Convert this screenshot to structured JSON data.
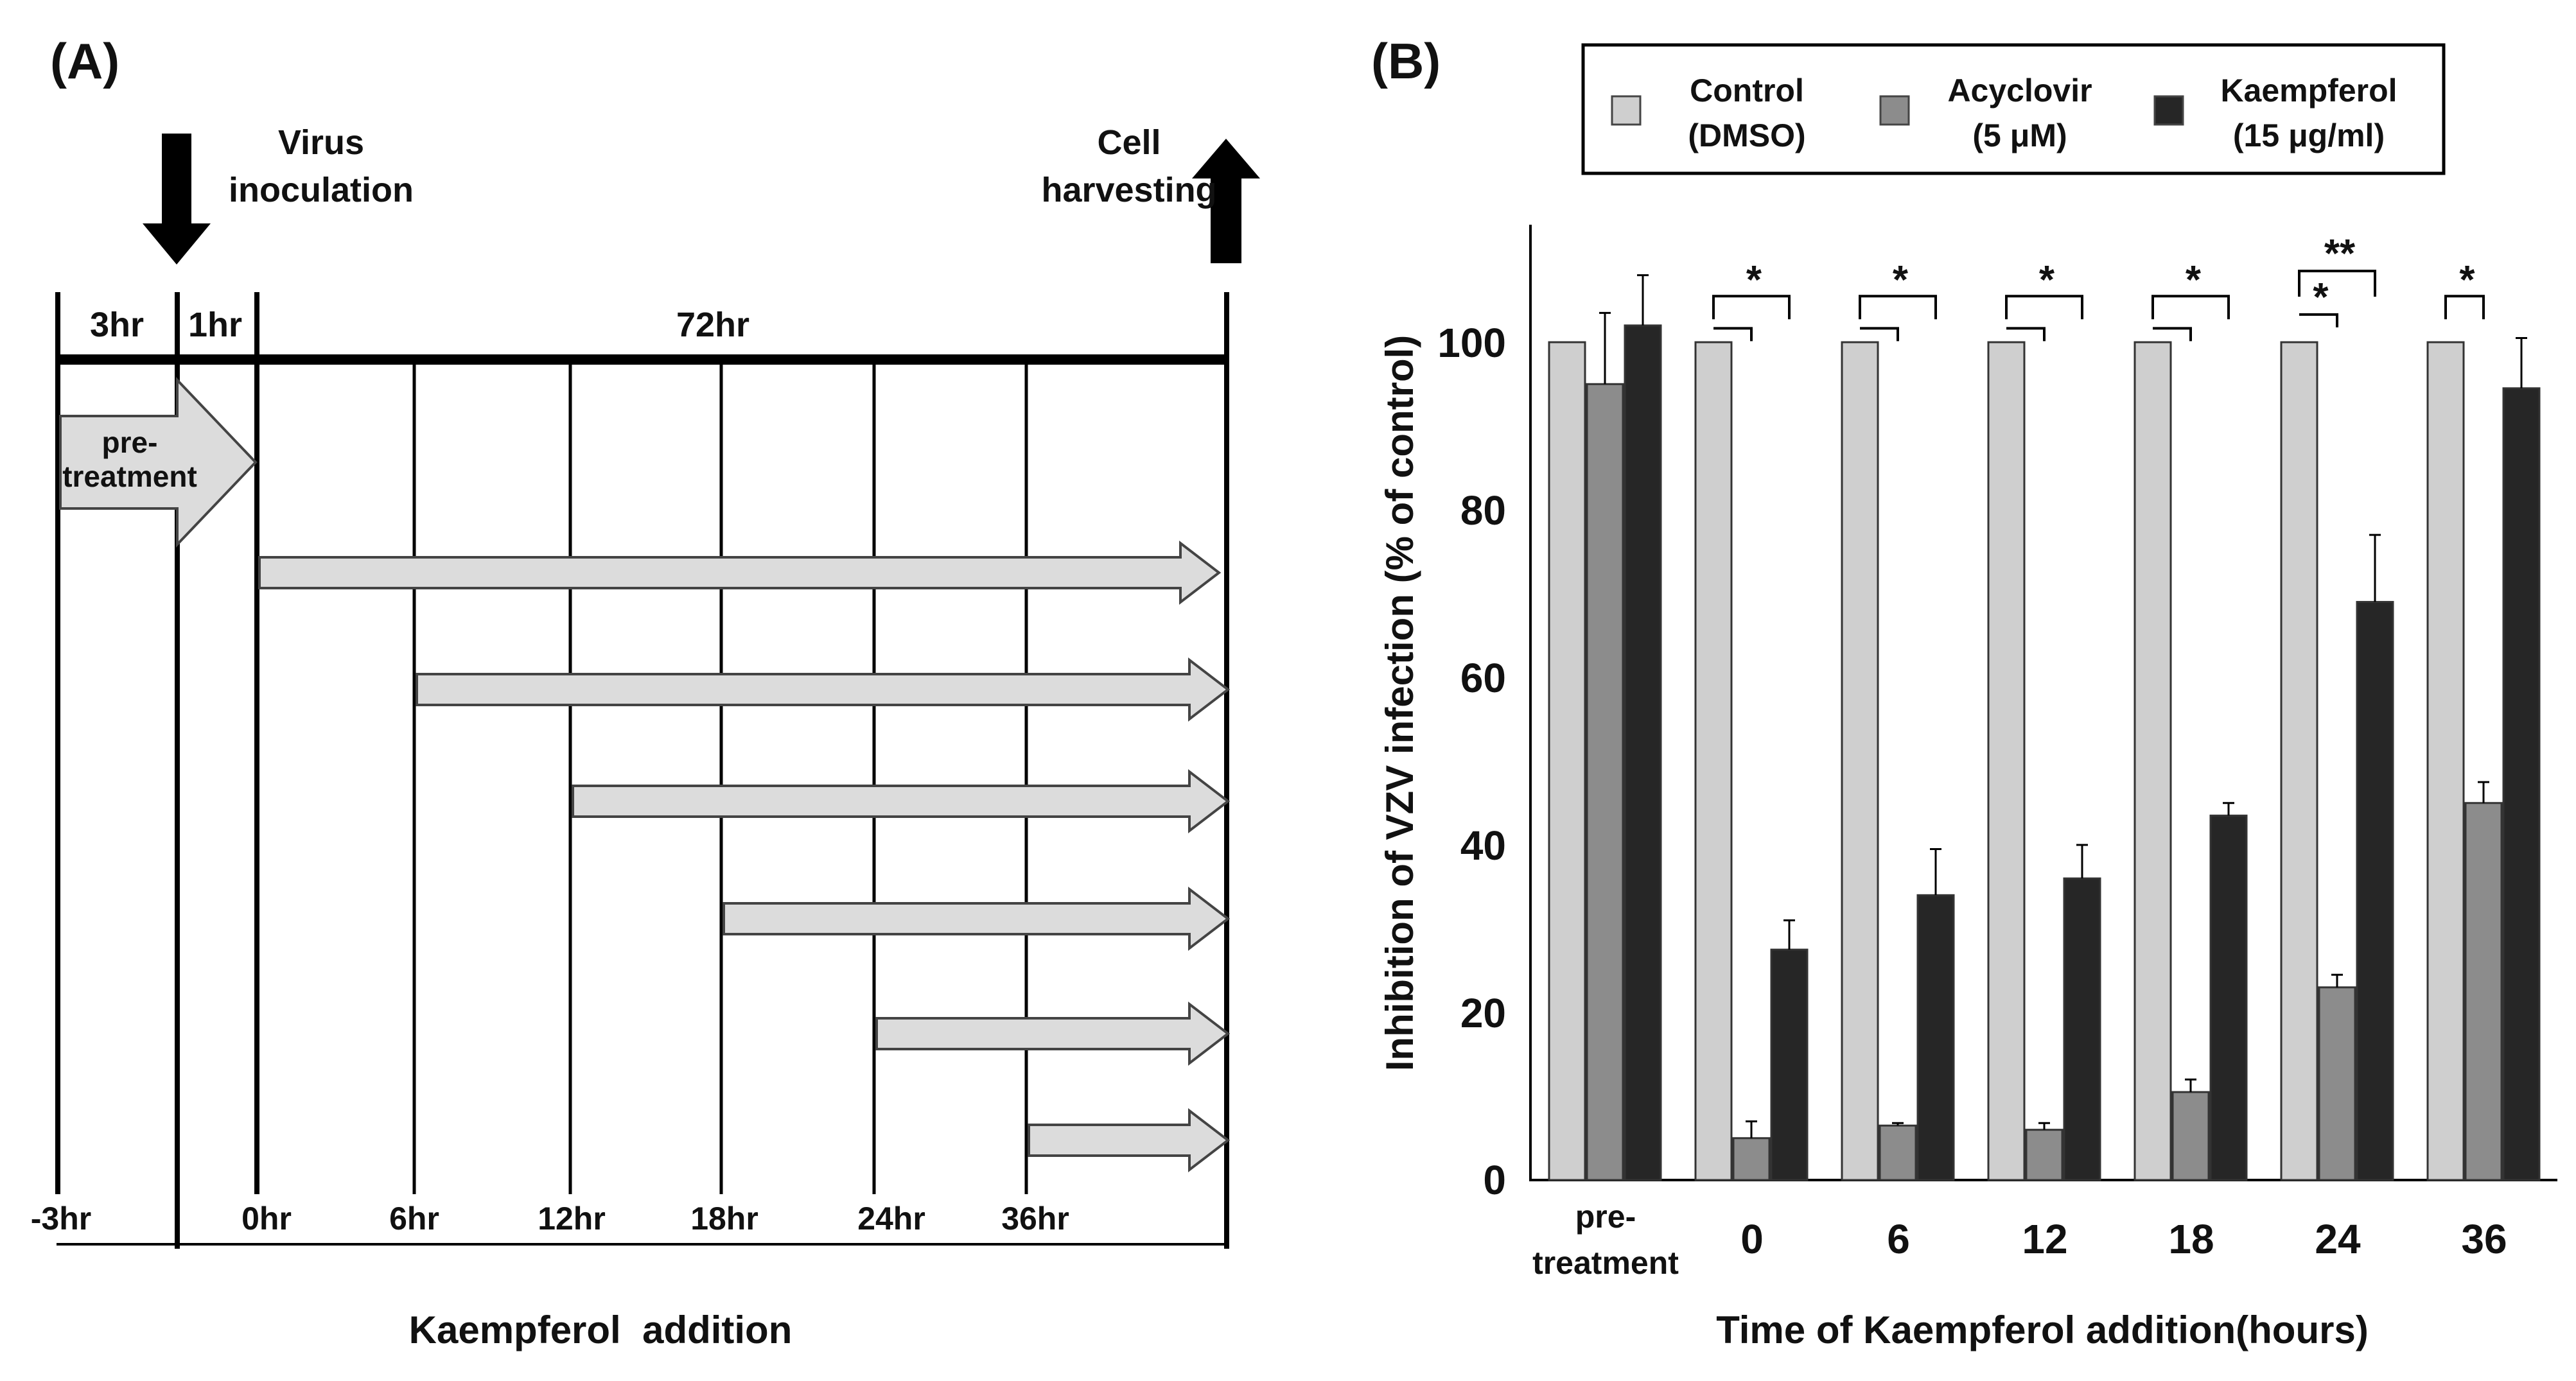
{
  "panel_a": {
    "label": "(A)",
    "virus_label_line1": "Virus",
    "virus_label_line2": "inoculation",
    "harvest_label_line1": "Cell",
    "harvest_label_line2": "harvesting",
    "segment_3hr": "3hr",
    "segment_1hr": "1hr",
    "segment_72hr": "72hr",
    "pretreat_line1": "pre-",
    "pretreat_line2": "treatment",
    "time_labels": [
      "-3hr",
      "0hr",
      "6hr",
      "12hr",
      "18hr",
      "24hr",
      "36hr"
    ],
    "xlabel": "Kaempferol  addition",
    "colors": {
      "arrow_fill": "#dcdcdc",
      "arrow_stroke": "#444444",
      "line": "#000000"
    }
  },
  "panel_b": {
    "label": "(B)",
    "legend": [
      {
        "line1": "Control",
        "line2": "(DMSO)"
      },
      {
        "line1": "Acyclovir",
        "line2": "(5 μM)"
      },
      {
        "line1": "Kaempferol",
        "line2": "(15 μg/ml)"
      }
    ],
    "category_line1": [
      "pre-",
      "0",
      "6",
      "12",
      "18",
      "24",
      "36"
    ],
    "category_line2": [
      "treatment",
      "",
      "",
      "",
      "",
      "",
      ""
    ],
    "ytick_labels": [
      "0",
      "20",
      "40",
      "60",
      "80",
      "100"
    ],
    "significance": {
      "pairs": [
        {
          "stars": [
            "*"
          ]
        },
        {
          "stars": [
            "*"
          ]
        },
        {
          "stars": [
            "*"
          ]
        },
        {
          "stars": [
            "*"
          ]
        },
        {
          "stars": [
            "**",
            "*"
          ]
        },
        {
          "stars": [
            "*"
          ]
        }
      ]
    }
  },
  "chart_data": {
    "type": "bar",
    "title": "",
    "xlabel": "Time of Kaempferol addition(hours)",
    "ylabel": "Inhibition of VZV infection (% of control)",
    "ylim": [
      0,
      112
    ],
    "yticks": [
      0,
      20,
      40,
      60,
      80,
      100
    ],
    "grid": false,
    "legend_position": "top",
    "categories": [
      "pre-treatment",
      "0",
      "6",
      "12",
      "18",
      "24",
      "36"
    ],
    "series": [
      {
        "name": "Control (DMSO)",
        "color": "#cfcfcf",
        "values": [
          100,
          100,
          100,
          100,
          100,
          100,
          100
        ],
        "errors": [
          0,
          0,
          0,
          0,
          0,
          0,
          0
        ]
      },
      {
        "name": "Acyclovir (5 μM)",
        "color": "#8c8c8c",
        "values": [
          95,
          5,
          6.5,
          6,
          10.5,
          23,
          45
        ],
        "errors": [
          8.5,
          2,
          0.3,
          0.8,
          1.5,
          1.5,
          2.5
        ]
      },
      {
        "name": "Kaempferol (15 μg/ml)",
        "color": "#262626",
        "values": [
          102,
          27.5,
          34,
          36,
          43.5,
          69,
          94.5
        ],
        "errors": [
          6,
          3.5,
          5.5,
          4,
          1.5,
          8,
          6
        ]
      }
    ],
    "significance_brackets": [
      {
        "category": "0",
        "comparisons": [
          {
            "between": [
              "Control (DMSO)",
              "Acyclovir (5 μM)"
            ],
            "label": "*"
          },
          {
            "between": [
              "Control (DMSO)",
              "Kaempferol (15 μg/ml)"
            ],
            "label": "*"
          }
        ]
      },
      {
        "category": "6",
        "comparisons": [
          {
            "between": [
              "Control (DMSO)",
              "Acyclovir (5 μM)"
            ],
            "label": "*"
          },
          {
            "between": [
              "Control (DMSO)",
              "Kaempferol (15 μg/ml)"
            ],
            "label": "*"
          }
        ]
      },
      {
        "category": "12",
        "comparisons": [
          {
            "between": [
              "Control (DMSO)",
              "Acyclovir (5 μM)"
            ],
            "label": "*"
          },
          {
            "between": [
              "Control (DMSO)",
              "Kaempferol (15 μg/ml)"
            ],
            "label": "*"
          }
        ]
      },
      {
        "category": "18",
        "comparisons": [
          {
            "between": [
              "Control (DMSO)",
              "Acyclovir (5 μM)"
            ],
            "label": "*"
          },
          {
            "between": [
              "Control (DMSO)",
              "Kaempferol (15 μg/ml)"
            ],
            "label": "*"
          }
        ]
      },
      {
        "category": "24",
        "comparisons": [
          {
            "between": [
              "Control (DMSO)",
              "Acyclovir (5 μM)"
            ],
            "label": "*"
          },
          {
            "between": [
              "Control (DMSO)",
              "Kaempferol (15 μg/ml)"
            ],
            "label": "**"
          }
        ]
      },
      {
        "category": "36",
        "comparisons": [
          {
            "between": [
              "Control (DMSO)",
              "Acyclovir (5 μM)"
            ],
            "label": "*"
          }
        ]
      }
    ]
  }
}
